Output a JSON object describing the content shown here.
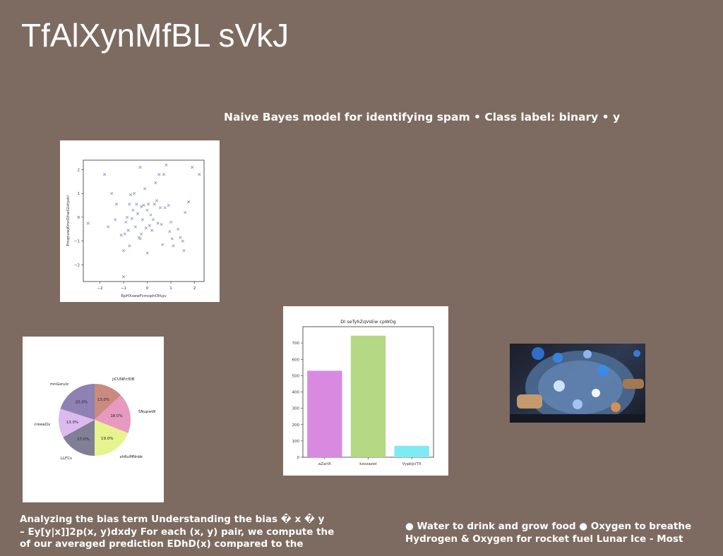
{
  "page": {
    "title": "TfAlXynMfBL sVkJ",
    "subtitle": "Naive Bayes model for identifying spam • Class label: binary • y"
  },
  "text_left": {
    "lines": [
      "Analyzing the bias term Understanding the bias � x � y",
      "– Ey[y|x]]2p(x, y)dxdy For each (x, y) pair, we compute the",
      "of our averaged prediction EDhD(x) compared to the"
    ]
  },
  "text_right": {
    "lines": [
      "● Water to drink and grow food ● Oxygen to breathe",
      "Hydrogen & Oxygen for rocket fuel Lunar Ice - Most"
    ]
  },
  "photo": {
    "label": "photo-of-people-at-table-with-drinks"
  },
  "chart_data": [
    {
      "type": "scatter",
      "title": "",
      "xlabel": "RpHXoewFcmophOlfujv",
      "ylabel": "PmqnvwjKmnDhwGIxhjvkl",
      "xlim": [
        -2.7,
        2.4
      ],
      "ylim": [
        -2.7,
        2.4
      ],
      "xticks": [
        -2,
        -1,
        0,
        1,
        2
      ],
      "yticks": [
        -2,
        -1,
        0,
        1,
        2
      ],
      "marker": "x",
      "color": "#8a8fc0",
      "points": [
        [
          -2.5,
          -0.25
        ],
        [
          -1.8,
          1.8
        ],
        [
          -1.5,
          1.0
        ],
        [
          -1.3,
          0.55
        ],
        [
          -1.35,
          -0.1
        ],
        [
          -1.65,
          -0.4
        ],
        [
          -1.1,
          -0.75
        ],
        [
          -1.0,
          -1.4
        ],
        [
          -0.95,
          -0.7
        ],
        [
          -0.9,
          -0.2
        ],
        [
          -0.85,
          0.0
        ],
        [
          -0.8,
          -0.55
        ],
        [
          -0.75,
          0.55
        ],
        [
          -0.7,
          0.95
        ],
        [
          -0.65,
          -0.05
        ],
        [
          -0.6,
          0.3
        ],
        [
          -0.55,
          1.0
        ],
        [
          -0.5,
          -0.4
        ],
        [
          -0.45,
          0.55
        ],
        [
          -0.4,
          0.15
        ],
        [
          -0.35,
          -0.85
        ],
        [
          -0.3,
          -0.9
        ],
        [
          -0.25,
          0.45
        ],
        [
          -0.2,
          -0.1
        ],
        [
          -0.15,
          0.5
        ],
        [
          -0.1,
          1.2
        ],
        [
          -0.05,
          -0.45
        ],
        [
          0.0,
          0.3
        ],
        [
          0.05,
          0.55
        ],
        [
          0.1,
          -0.35
        ],
        [
          0.15,
          0.1
        ],
        [
          0.2,
          -0.55
        ],
        [
          0.25,
          -0.1
        ],
        [
          0.3,
          0.55
        ],
        [
          0.35,
          1.45
        ],
        [
          0.4,
          0.7
        ],
        [
          0.45,
          -0.25
        ],
        [
          0.5,
          1.8
        ],
        [
          0.55,
          0.4
        ],
        [
          0.6,
          -0.3
        ],
        [
          0.65,
          -1.15
        ],
        [
          0.7,
          1.8
        ],
        [
          0.75,
          0.4
        ],
        [
          0.8,
          2.2
        ],
        [
          0.9,
          0.5
        ],
        [
          0.95,
          -0.6
        ],
        [
          1.0,
          -0.2
        ],
        [
          1.05,
          -0.9
        ],
        [
          1.1,
          -1.2
        ],
        [
          1.3,
          -0.5
        ],
        [
          1.4,
          -0.85
        ],
        [
          1.5,
          -1.0
        ],
        [
          1.55,
          -1.4
        ],
        [
          1.6,
          0.2
        ],
        [
          1.75,
          0.65
        ],
        [
          1.9,
          2.1
        ],
        [
          2.2,
          1.8
        ],
        [
          -0.3,
          2.1
        ],
        [
          -0.75,
          -1.2
        ],
        [
          -1.0,
          -2.5
        ],
        [
          0.0,
          -1.5
        ],
        [
          -0.25,
          -0.7
        ]
      ]
    },
    {
      "type": "pie",
      "title": "",
      "slices": [
        {
          "label": "jiCUNPcfDB",
          "value": 13.0,
          "color": "#c98a80"
        },
        {
          "label": "SNupwW",
          "value": 18.0,
          "color": "#e899bf"
        },
        {
          "label": "xhRuMNnbk",
          "value": 19.0,
          "color": "#e6f38e"
        },
        {
          "label": "LLFCs",
          "value": 17.0,
          "color": "#7f7f95"
        },
        {
          "label": "creeaQx",
          "value": 13.0,
          "color": "#dcb9ee"
        },
        {
          "label": "mnGsruIz",
          "value": 20.0,
          "color": "#8f81b3"
        }
      ]
    },
    {
      "type": "bar",
      "title": "DI seTyhZqVsEw cpWOg",
      "categories": [
        "aZarIX",
        "kzozazwl",
        "VypbjciTX"
      ],
      "values": [
        530,
        745,
        70
      ],
      "colors": [
        "#d98ae0",
        "#b5d884",
        "#7eeaf3"
      ],
      "ylim": [
        0,
        800
      ],
      "yticks": [
        0,
        100,
        200,
        300,
        400,
        500,
        600,
        700
      ]
    }
  ]
}
